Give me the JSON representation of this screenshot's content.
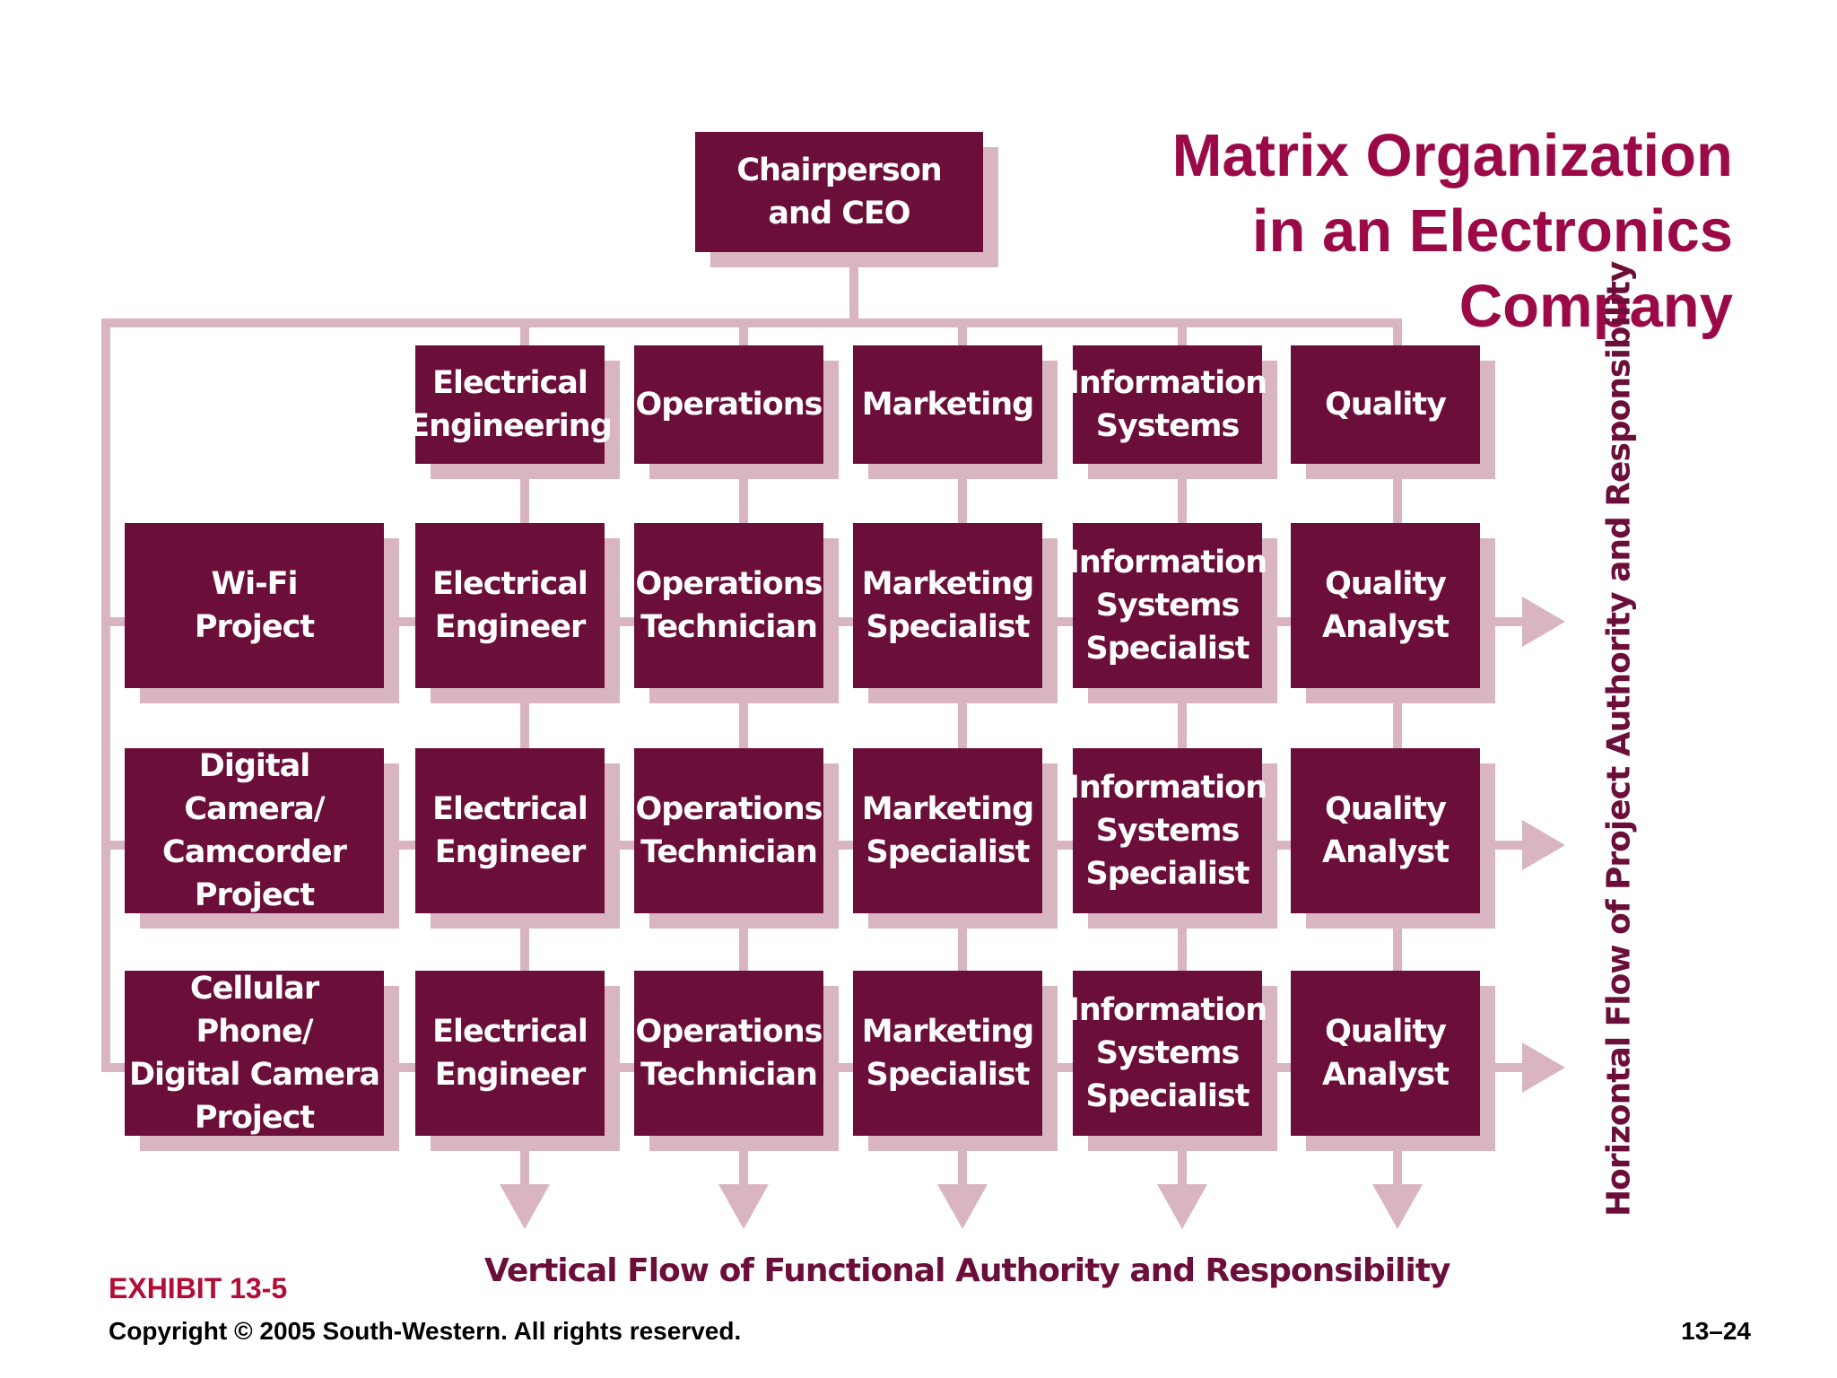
{
  "title": "Matrix Organization\nin an Electronics\nCompany",
  "ceo": "Chairperson\nand CEO",
  "departments": [
    "Electrical\nEngineering",
    "Operations",
    "Marketing",
    "Information\nSystems",
    "Quality"
  ],
  "projects": [
    {
      "name": "Wi-Fi\nProject",
      "roles": [
        "Electrical\nEngineer",
        "Operations\nTechnician",
        "Marketing\nSpecialist",
        "Information\nSystems\nSpecialist",
        "Quality\nAnalyst"
      ]
    },
    {
      "name": "Digital Camera/\nCamcorder\nProject",
      "roles": [
        "Electrical\nEngineer",
        "Operations\nTechnician",
        "Marketing\nSpecialist",
        "Information\nSystems\nSpecialist",
        "Quality\nAnalyst"
      ]
    },
    {
      "name": "Cellular Phone/\nDigital Camera\nProject",
      "roles": [
        "Electrical\nEngineer",
        "Operations\nTechnician",
        "Marketing\nSpecialist",
        "Information\nSystems\nSpecialist",
        "Quality\nAnalyst"
      ]
    }
  ],
  "horizontal_flow_label": "Horizontal Flow of Project Authority and Responsibility",
  "vertical_flow_label": "Vertical Flow of Functional Authority and Responsibility",
  "exhibit": "EXHIBIT 13-5",
  "copyright": "Copyright © 2005 South-Western. All rights reserved.",
  "page_number": "13–24",
  "colors": {
    "box": "#6b0f3a",
    "shadow": "#d9b5c1",
    "connector": "#d9b5c1",
    "title": "#9b0a47",
    "exhibit": "#b30d36"
  }
}
